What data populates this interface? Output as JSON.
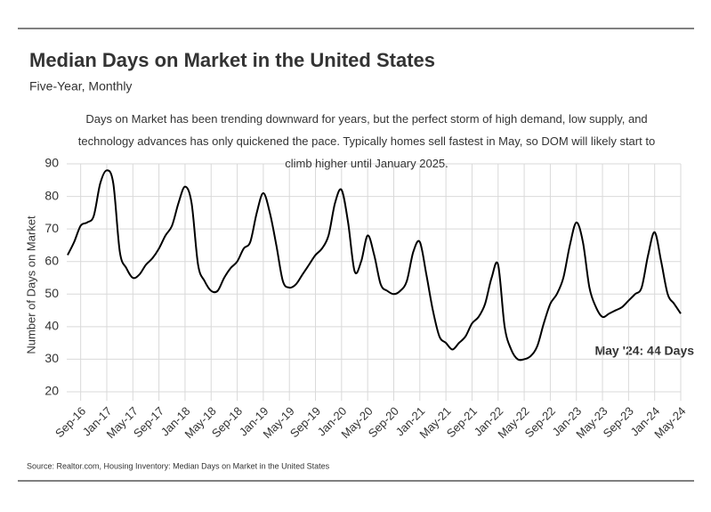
{
  "chart_data": {
    "type": "line",
    "title": "Median Days on Market in the United States",
    "subtitle": "Five-Year, Monthly",
    "description": "Days on Market has been trending downward for years, but the perfect storm of high demand, low supply, and technology advances has only quickened the pace. Typically homes sell fastest in May, so DOM will likely start to climb higher until January 2025.",
    "y_label": "Number of Days on Market",
    "annotation": "May '24: 44 Days",
    "source": "Source:  Realtor.com, Housing Inventory: Median Days on Market in the United States",
    "categories": [
      null,
      null,
      "Sep-16",
      null,
      null,
      null,
      "Jan-17",
      null,
      null,
      null,
      "May-17",
      null,
      null,
      null,
      "Sep-17",
      null,
      null,
      null,
      "Jan-18",
      null,
      null,
      null,
      "May-18",
      null,
      null,
      null,
      "Sep-18",
      null,
      null,
      null,
      "Jan-19",
      null,
      null,
      null,
      "May-19",
      null,
      null,
      null,
      "Sep-19",
      null,
      null,
      null,
      "Jan-20",
      null,
      null,
      null,
      "May-20",
      null,
      null,
      null,
      "Sep-20",
      null,
      null,
      null,
      "Jan-21",
      null,
      null,
      null,
      "May-21",
      null,
      null,
      null,
      "Sep-21",
      null,
      null,
      null,
      "Jan-22",
      null,
      null,
      null,
      "May-22",
      null,
      null,
      null,
      "Sep-22",
      null,
      null,
      null,
      "Jan-23",
      null,
      null,
      null,
      "May-23",
      null,
      null,
      null,
      "Sep-23",
      null,
      null,
      null,
      "Jan-24",
      null,
      null,
      null,
      "May-24"
    ],
    "values": [
      62,
      66,
      71,
      72,
      74,
      84,
      88,
      84,
      63,
      58,
      55,
      56,
      59,
      61,
      64,
      68,
      71,
      78,
      83,
      78,
      59,
      54,
      51,
      51,
      55,
      58,
      60,
      64,
      66,
      75,
      81,
      75,
      65,
      54,
      52,
      53,
      56,
      59,
      62,
      64,
      68,
      78,
      82,
      72,
      57,
      60,
      68,
      62,
      53,
      51,
      50,
      51,
      54,
      63,
      66,
      56,
      45,
      37,
      35,
      33,
      35,
      37,
      41,
      43,
      47,
      55,
      59,
      40,
      33,
      30,
      30,
      31,
      34,
      41,
      47,
      50,
      55,
      65,
      72,
      66,
      52,
      46,
      43,
      44,
      45,
      46,
      48,
      50,
      52,
      62,
      69,
      60,
      50,
      47,
      44
    ],
    "color": "#000000",
    "ylim": [
      20,
      90
    ],
    "yticks": [
      20,
      30,
      40,
      50,
      60,
      70,
      80,
      90
    ],
    "grid": true
  }
}
